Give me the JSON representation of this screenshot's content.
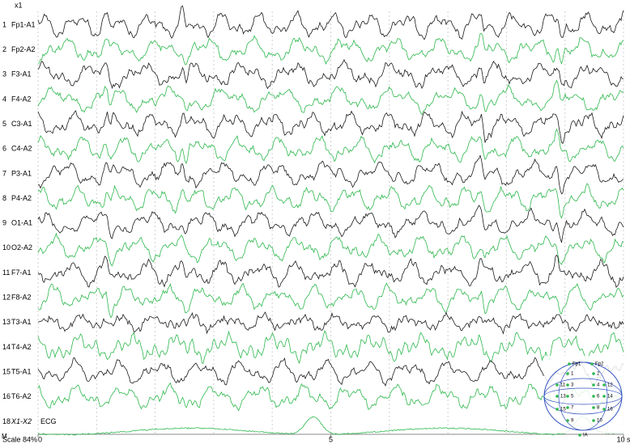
{
  "header": {
    "montage": "x1"
  },
  "channels": [
    {
      "number": "1",
      "label": "Fp1-A1",
      "color": "#1a1a1a"
    },
    {
      "number": "2",
      "label": "Fp2-A2",
      "color": "#2db84d"
    },
    {
      "number": "3",
      "label": "F3-A1",
      "color": "#1a1a1a"
    },
    {
      "number": "4",
      "label": "F4-A2",
      "color": "#2db84d"
    },
    {
      "number": "5",
      "label": "C3-A1",
      "color": "#1a1a1a"
    },
    {
      "number": "6",
      "label": "C4-A2",
      "color": "#2db84d"
    },
    {
      "number": "7",
      "label": "P3-A1",
      "color": "#1a1a1a"
    },
    {
      "number": "8",
      "label": "P4-A2",
      "color": "#2db84d"
    },
    {
      "number": "9",
      "label": "O1-A1",
      "color": "#1a1a1a"
    },
    {
      "number": "10",
      "label": "O2-A2",
      "color": "#2db84d"
    },
    {
      "number": "11",
      "label": "F7-A1",
      "color": "#1a1a1a"
    },
    {
      "number": "12",
      "label": "F8-A2",
      "color": "#2db84d"
    },
    {
      "number": "13",
      "label": "T3-A1",
      "color": "#1a1a1a"
    },
    {
      "number": "14",
      "label": "T4-A2",
      "color": "#2db84d"
    },
    {
      "number": "15",
      "label": "T5-A1",
      "color": "#1a1a1a"
    },
    {
      "number": "16",
      "label": "T6-A2",
      "color": "#2db84d"
    }
  ],
  "ecg": {
    "number": "18",
    "label": "X1-X2",
    "name": "ECG",
    "color": "#2db84d"
  },
  "footer": {
    "marker": "M",
    "scale": "Scale 84%"
  },
  "time_axis": {
    "xlim": [
      0,
      10
    ],
    "ticks": [
      0,
      5,
      {
        "value": 10,
        "label": "10 s"
      }
    ]
  },
  "head_map": {
    "labels": [
      "Fp1",
      "Fp2",
      "1",
      "2",
      "3",
      "4",
      "5",
      "6",
      "7",
      "8",
      "9",
      "10",
      "11",
      "12",
      "13",
      "14",
      "15",
      "16",
      "IA"
    ]
  }
}
